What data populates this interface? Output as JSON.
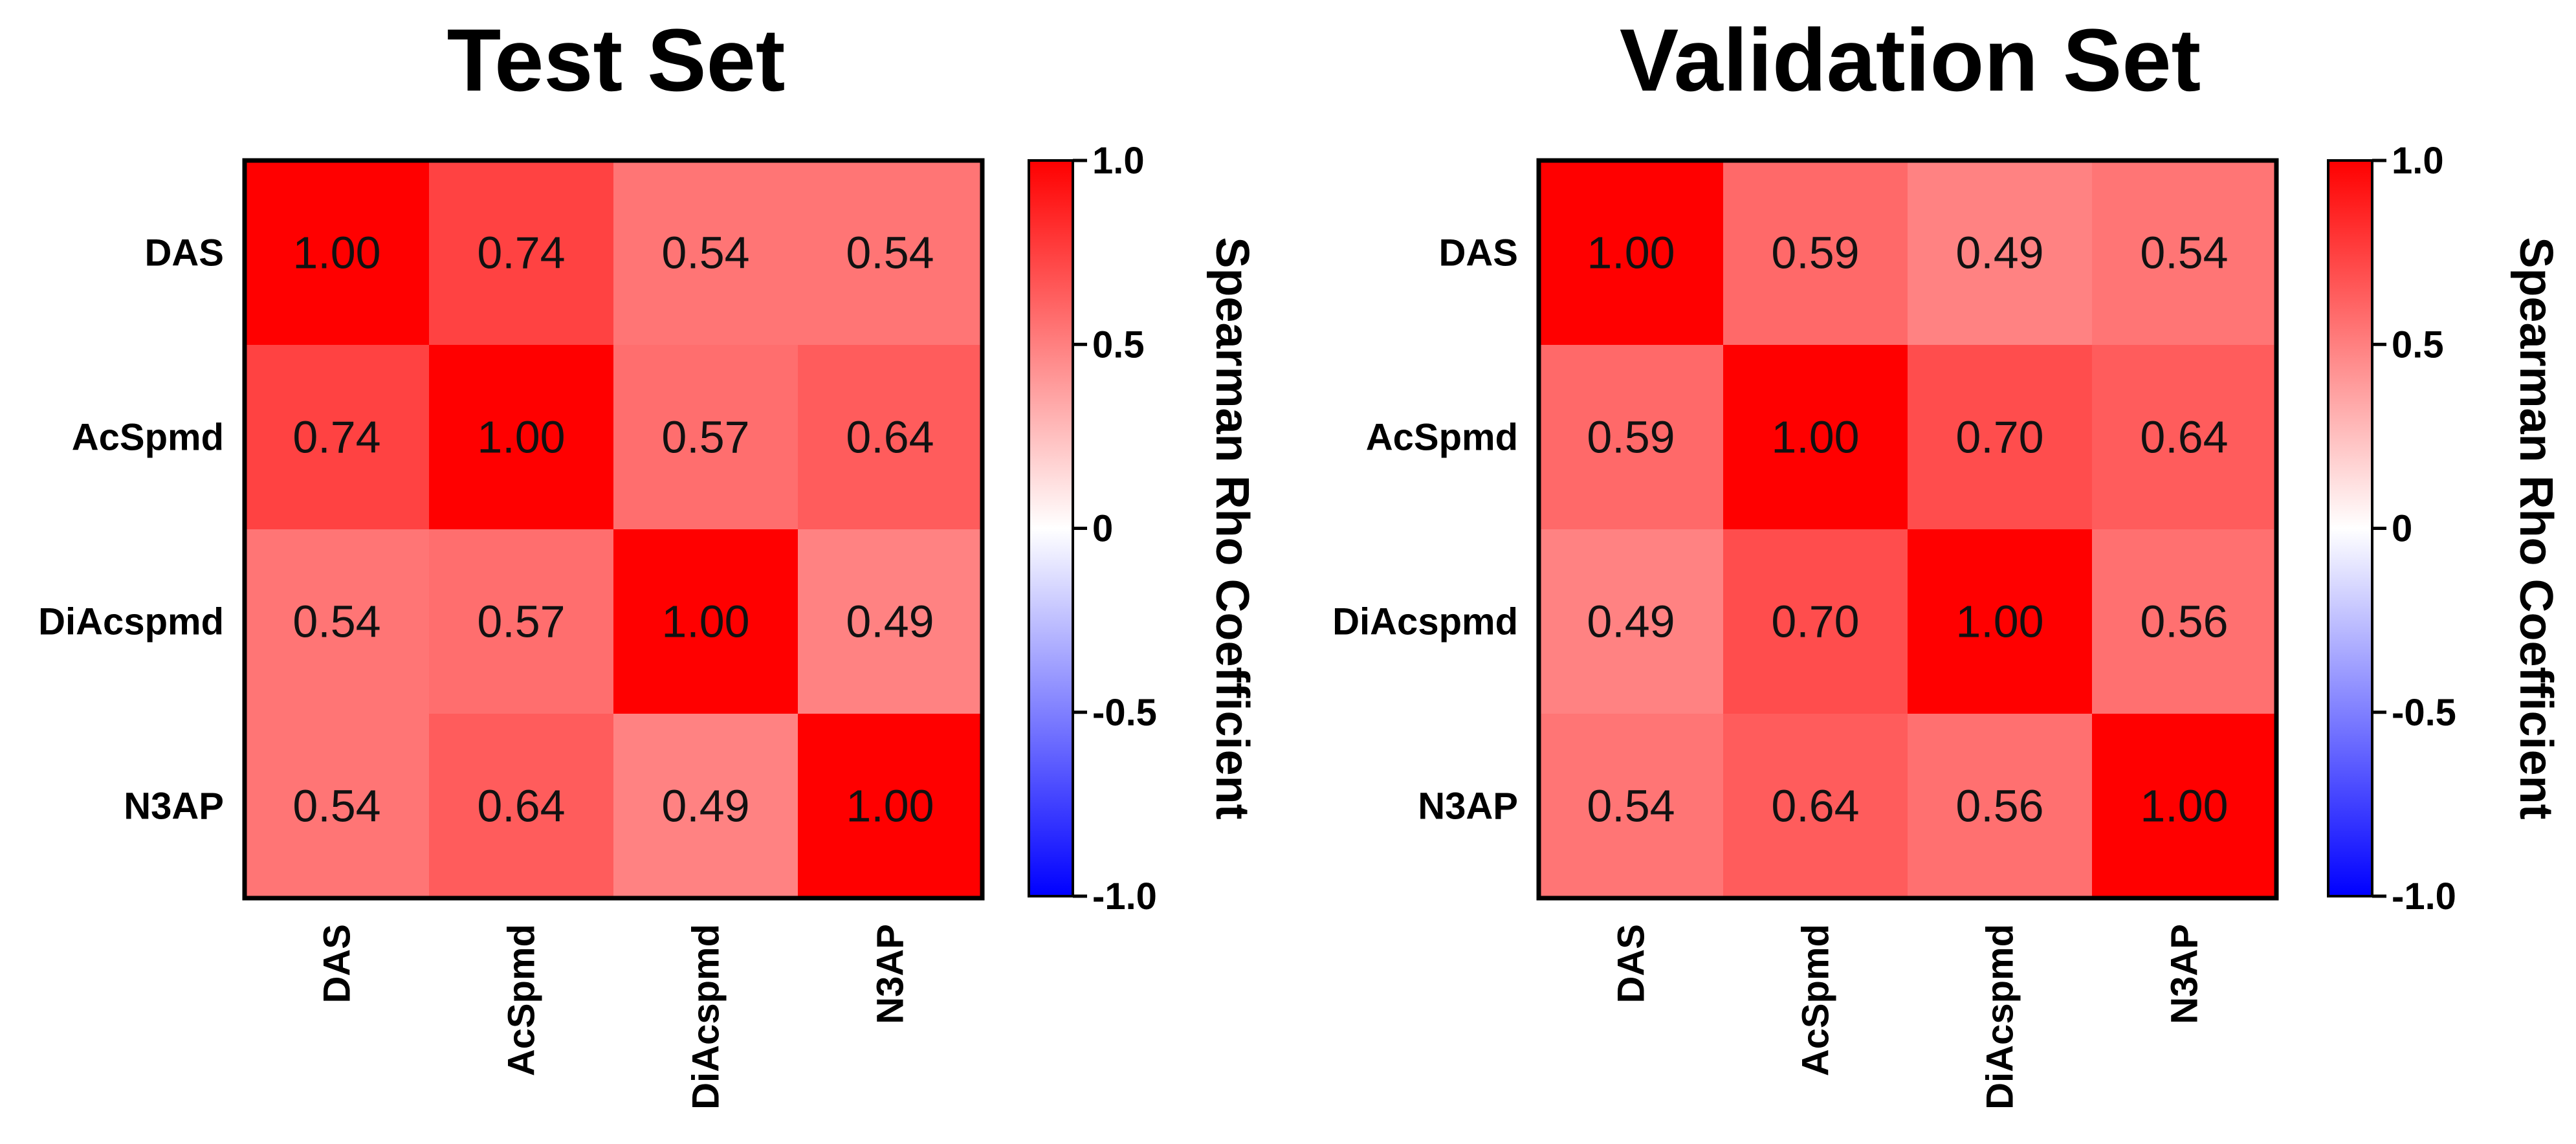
{
  "chart_data": [
    {
      "type": "heatmap",
      "title": "Test Set",
      "row_labels": [
        "DAS",
        "AcSpmd",
        "DiAcspmd",
        "N3AP"
      ],
      "col_labels": [
        "DAS",
        "AcSpmd",
        "DiAcspmd",
        "N3AP"
      ],
      "values": [
        [
          1.0,
          0.74,
          0.54,
          0.54
        ],
        [
          0.74,
          1.0,
          0.57,
          0.64
        ],
        [
          0.54,
          0.57,
          1.0,
          0.49
        ],
        [
          0.54,
          0.64,
          0.49,
          1.0
        ]
      ],
      "value_labels": [
        [
          "1.00",
          "0.74",
          "0.54",
          "0.54"
        ],
        [
          "0.74",
          "1.00",
          "0.57",
          "0.64"
        ],
        [
          "0.54",
          "0.57",
          "1.00",
          "0.49"
        ],
        [
          "0.54",
          "0.64",
          "0.49",
          "1.00"
        ]
      ],
      "colorbar": {
        "label": "Spearman Rho Coefficient",
        "range": [
          -1.0,
          1.0
        ],
        "ticks": [
          1.0,
          0.5,
          0,
          -0.5,
          -1.0
        ],
        "tick_labels": [
          "1.0",
          "0.5",
          "0",
          "-0.5",
          "-1.0"
        ],
        "colors": {
          "low": "#0000ff",
          "mid": "#ffffff",
          "high": "#ff0000"
        }
      }
    },
    {
      "type": "heatmap",
      "title": "Validation Set",
      "row_labels": [
        "DAS",
        "AcSpmd",
        "DiAcspmd",
        "N3AP"
      ],
      "col_labels": [
        "DAS",
        "AcSpmd",
        "DiAcspmd",
        "N3AP"
      ],
      "values": [
        [
          1.0,
          0.59,
          0.49,
          0.54
        ],
        [
          0.59,
          1.0,
          0.7,
          0.64
        ],
        [
          0.49,
          0.7,
          1.0,
          0.56
        ],
        [
          0.54,
          0.64,
          0.56,
          1.0
        ]
      ],
      "value_labels": [
        [
          "1.00",
          "0.59",
          "0.49",
          "0.54"
        ],
        [
          "0.59",
          "1.00",
          "0.70",
          "0.64"
        ],
        [
          "0.49",
          "0.70",
          "1.00",
          "0.56"
        ],
        [
          "0.54",
          "0.64",
          "0.56",
          "1.00"
        ]
      ],
      "colorbar": {
        "label": "Spearman Rho Coefficient",
        "range": [
          -1.0,
          1.0
        ],
        "ticks": [
          1.0,
          0.5,
          0,
          -0.5,
          -1.0
        ],
        "tick_labels": [
          "1.0",
          "0.5",
          "0",
          "-0.5",
          "-1.0"
        ],
        "colors": {
          "low": "#0000ff",
          "mid": "#ffffff",
          "high": "#ff0000"
        }
      }
    }
  ]
}
